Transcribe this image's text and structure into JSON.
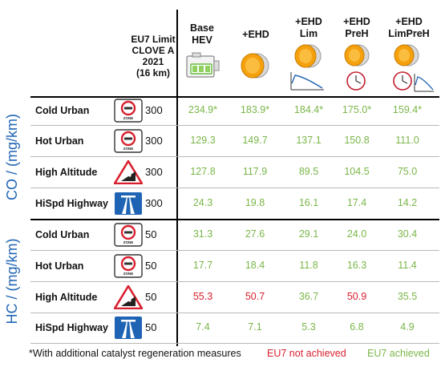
{
  "header": {
    "limit_label": [
      "EU7 Limit",
      "CLOVE A",
      "2021",
      "(16 km)"
    ],
    "columns": [
      {
        "label": [
          "Base",
          "HEV"
        ],
        "icon": "battery-engine-icon"
      },
      {
        "label": [
          "+EHD"
        ],
        "icon": "catalyst-heater-icon"
      },
      {
        "label": [
          "+EHD",
          "Lim"
        ],
        "icon": "catalyst-heater-limited-icon"
      },
      {
        "label": [
          "+EHD",
          "PreH"
        ],
        "icon": "catalyst-heater-clock-icon"
      },
      {
        "label": [
          "+EHD",
          "LimPreH"
        ],
        "icon": "catalyst-heater-clock-icon"
      }
    ]
  },
  "groups": [
    {
      "label": "CO / (mg/km)",
      "rows": [
        {
          "name": "Cold Urban",
          "sign": "zone-sign-icon",
          "limit": "300",
          "values": [
            "234.9*",
            "183.9*",
            "184.4*",
            "175.0*",
            "159.4*"
          ],
          "status": [
            "ok",
            "ok",
            "ok",
            "ok",
            "ok"
          ]
        },
        {
          "name": "Hot Urban",
          "sign": "zone-sign-icon",
          "limit": "300",
          "values": [
            "129.3",
            "149.7",
            "137.1",
            "150.8",
            "111.0"
          ],
          "status": [
            "ok",
            "ok",
            "ok",
            "ok",
            "ok"
          ]
        },
        {
          "name": "High Altitude",
          "sign": "steep-hill-sign-icon",
          "limit": "300",
          "values": [
            "127.8",
            "117.9",
            "89.5",
            "104.5",
            "75.0"
          ],
          "status": [
            "ok",
            "ok",
            "ok",
            "ok",
            "ok"
          ]
        },
        {
          "name": "HiSpd Highway",
          "sign": "highway-sign-icon",
          "limit": "300",
          "values": [
            "24.3",
            "19.8",
            "16.1",
            "17.4",
            "14.2"
          ],
          "status": [
            "ok",
            "ok",
            "ok",
            "ok",
            "ok"
          ]
        }
      ]
    },
    {
      "label": "HC / (mg/km)",
      "rows": [
        {
          "name": "Cold Urban",
          "sign": "zone-sign-icon",
          "limit": "50",
          "values": [
            "31.3",
            "27.6",
            "29.1",
            "24.0",
            "30.4"
          ],
          "status": [
            "ok",
            "ok",
            "ok",
            "ok",
            "ok"
          ]
        },
        {
          "name": "Hot Urban",
          "sign": "zone-sign-icon",
          "limit": "50",
          "values": [
            "17.7",
            "18.4",
            "11.8",
            "16.3",
            "11.4"
          ],
          "status": [
            "ok",
            "ok",
            "ok",
            "ok",
            "ok"
          ]
        },
        {
          "name": "High Altitude",
          "sign": "steep-hill-sign-icon",
          "limit": "50",
          "values": [
            "55.3",
            "50.7",
            "36.7",
            "50.9",
            "35.5"
          ],
          "status": [
            "fail",
            "fail",
            "ok",
            "fail",
            "ok"
          ]
        },
        {
          "name": "HiSpd Highway",
          "sign": "highway-sign-icon",
          "limit": "50",
          "values": [
            "7.4",
            "7.1",
            "5.3",
            "6.8",
            "4.9"
          ],
          "status": [
            "ok",
            "ok",
            "ok",
            "ok",
            "ok"
          ]
        }
      ]
    }
  ],
  "legend": {
    "note": "*With additional catalyst regeneration measures",
    "not_achieved": "EU7 not achieved",
    "achieved": "EU7 achieved"
  },
  "colors": {
    "achieved": "#7ab648",
    "not_achieved": "#d8202f",
    "group_label": "#1f64b4"
  }
}
